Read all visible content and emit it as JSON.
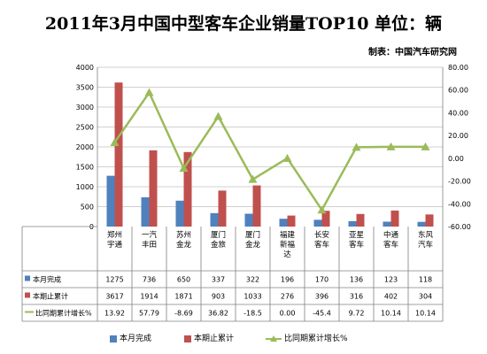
{
  "title": "2011年3月中国中型客车企业销量TOP10  单位：辆",
  "credit": "制表：中国汽车研究网",
  "colors": {
    "bar1": "#4f81bd",
    "bar2": "#c0504d",
    "line": "#9bbb59",
    "grid": "#c0c0c0"
  },
  "chart_data": {
    "type": "bar",
    "categories": [
      "郑州宇通",
      "一汽丰田",
      "苏州金龙",
      "厦门金旅",
      "厦门金龙",
      "福建新福达",
      "长安客车",
      "亚星客车",
      "中通客车",
      "东风汽车"
    ],
    "category_lines": [
      [
        "郑州",
        "宇通"
      ],
      [
        "一汽",
        "丰田"
      ],
      [
        "苏州",
        "金龙"
      ],
      [
        "厦门",
        "金旅"
      ],
      [
        "厦门",
        "金龙"
      ],
      [
        "福建",
        "新福",
        "达"
      ],
      [
        "长安",
        "客车"
      ],
      [
        "亚星",
        "客车"
      ],
      [
        "中通",
        "客车"
      ],
      [
        "东风",
        "汽车"
      ]
    ],
    "series": [
      {
        "name": "本月完成",
        "type": "bar",
        "axis": "left",
        "values": [
          1275,
          736,
          650,
          337,
          322,
          196,
          170,
          136,
          123,
          118
        ]
      },
      {
        "name": "本期止累计",
        "type": "bar",
        "axis": "left",
        "values": [
          3617,
          1914,
          1871,
          903,
          1033,
          276,
          396,
          316,
          402,
          304
        ]
      },
      {
        "name": "比同期累计增长%",
        "type": "line",
        "axis": "right",
        "values": [
          13.92,
          57.79,
          -8.69,
          36.82,
          -18.5,
          0.0,
          -45.4,
          9.72,
          10.14,
          10.14
        ]
      }
    ],
    "left_axis": {
      "min": 0,
      "max": 4000,
      "step": 500,
      "ticks": [
        "0",
        "500",
        "1000",
        "1500",
        "2000",
        "2500",
        "3000",
        "3500",
        "4000"
      ]
    },
    "right_axis": {
      "min": -60,
      "max": 80,
      "step": 20,
      "ticks": [
        "-60.00",
        "-40.00",
        "-20.00",
        "0.00",
        "20.00",
        "40.00",
        "60.00",
        "80.00"
      ]
    },
    "table_rows": [
      {
        "label": "本月完成",
        "cells": [
          "1275",
          "736",
          "650",
          "337",
          "322",
          "196",
          "170",
          "136",
          "123",
          "118"
        ]
      },
      {
        "label": "本期止累计",
        "cells": [
          "3617",
          "1914",
          "1871",
          "903",
          "1033",
          "276",
          "396",
          "316",
          "402",
          "304"
        ]
      },
      {
        "label": "比同期累计增长%",
        "cells": [
          "13.92",
          "57.79",
          "-8.69",
          "36.82",
          "-18.5",
          "0.00",
          "-45.4",
          "9.72",
          "10.14",
          "10.14"
        ]
      }
    ],
    "grid": true,
    "legend_position": "bottom"
  }
}
